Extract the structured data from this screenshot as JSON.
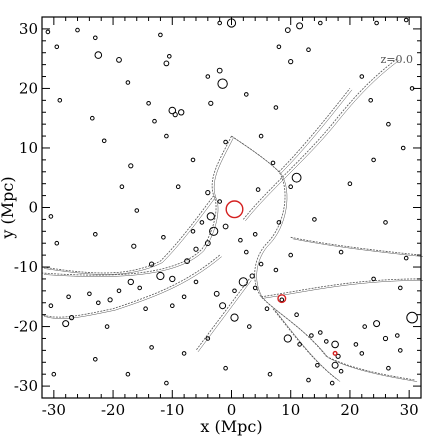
{
  "chart_data": {
    "type": "scatter",
    "title": "",
    "xlabel": "x (Mpc)",
    "ylabel": "y (Mpc)",
    "xlim": [
      -32,
      32
    ],
    "ylim": [
      -32,
      32
    ],
    "xticks": [
      -30,
      -20,
      -10,
      0,
      10,
      20,
      30
    ],
    "yticks": [
      -30,
      -20,
      -10,
      0,
      10,
      20,
      30
    ],
    "annotation": "z=0.0",
    "grid": false,
    "colors": {
      "halo": "#000000",
      "highlight": "#d42020",
      "filament": "#555555"
    },
    "series": [
      {
        "name": "",
        "color": "#000000",
        "points": [
          [
            -31.0,
            29.5,
            0.3
          ],
          [
            -29.5,
            27.0,
            0.3
          ],
          [
            -26.0,
            29.8,
            0.3
          ],
          [
            -22.5,
            25.6,
            0.55
          ],
          [
            -19.0,
            24.8,
            0.4
          ],
          [
            -12.0,
            29.0,
            0.3
          ],
          [
            -11.0,
            24.2,
            0.4
          ],
          [
            -10.5,
            25.4,
            0.3
          ],
          [
            -2.0,
            31.0,
            0.3
          ],
          [
            0.0,
            31.0,
            0.7
          ],
          [
            9.5,
            29.8,
            0.4
          ],
          [
            11.5,
            30.5,
            0.5
          ],
          [
            15.0,
            31.0,
            0.3
          ],
          [
            24.5,
            31.0,
            0.3
          ],
          [
            29.5,
            31.5,
            0.3
          ],
          [
            -29.0,
            18.0,
            0.3
          ],
          [
            -23.5,
            15.0,
            0.3
          ],
          [
            -14.0,
            17.5,
            0.3
          ],
          [
            -13.0,
            14.5,
            0.3
          ],
          [
            -3.5,
            17.5,
            0.35
          ],
          [
            -4.0,
            22.0,
            0.3
          ],
          [
            -2.0,
            23.0,
            0.4
          ],
          [
            -1.5,
            20.8,
            0.8
          ],
          [
            -17.5,
            21.0,
            0.3
          ],
          [
            -10.0,
            16.3,
            0.55
          ],
          [
            -8.5,
            16.0,
            0.45
          ],
          [
            -9.5,
            15.6,
            0.35
          ],
          [
            -21.5,
            11.2,
            0.3
          ],
          [
            -11.0,
            12.0,
            0.3
          ],
          [
            -1.0,
            11.0,
            0.3
          ],
          [
            7.5,
            16.8,
            0.3
          ],
          [
            10.0,
            24.5,
            0.35
          ],
          [
            13.0,
            26.5,
            0.3
          ],
          [
            8.0,
            27.0,
            0.3
          ],
          [
            22.0,
            22.0,
            0.3
          ],
          [
            23.5,
            18.0,
            0.3
          ],
          [
            26.5,
            14.0,
            0.3
          ],
          [
            29.0,
            10.0,
            0.3
          ],
          [
            10.0,
            3.5,
            0.3
          ],
          [
            7.0,
            7.5,
            0.3
          ],
          [
            -17.0,
            7.0,
            0.35
          ],
          [
            -18.5,
            3.5,
            0.3
          ],
          [
            -9.0,
            3.5,
            0.3
          ],
          [
            -6.5,
            8.0,
            0.3
          ],
          [
            14.0,
            -2.0,
            0.3
          ],
          [
            26.0,
            -2.5,
            0.3
          ],
          [
            18.5,
            -7.5,
            0.3
          ],
          [
            24.0,
            -12.0,
            0.3
          ],
          [
            29.5,
            -8.5,
            0.3
          ],
          [
            28.5,
            -13.5,
            0.3
          ],
          [
            -30.5,
            -1.5,
            0.3
          ],
          [
            -23.0,
            -4.5,
            0.3
          ],
          [
            -29.5,
            -6.0,
            0.3
          ],
          [
            -16.5,
            -6.5,
            0.35
          ],
          [
            -11.5,
            -5.0,
            0.3
          ],
          [
            -3.5,
            -1.5,
            0.6
          ],
          [
            -3.0,
            -4.0,
            0.7
          ],
          [
            -1.0,
            -3.2,
            0.4
          ],
          [
            -4.0,
            -6.0,
            0.4
          ],
          [
            -6.0,
            -7.0,
            0.35
          ],
          [
            1.5,
            -5.5,
            0.3
          ],
          [
            4.0,
            -4.5,
            0.3
          ],
          [
            2.5,
            -7.5,
            0.3
          ],
          [
            -2.0,
            1.0,
            0.3
          ],
          [
            -4.0,
            2.5,
            0.35
          ],
          [
            3.5,
            -11.5,
            0.35
          ],
          [
            5.0,
            -9.5,
            0.3
          ],
          [
            2.0,
            -12.5,
            0.7
          ],
          [
            4.0,
            -13.5,
            0.3
          ],
          [
            -2.5,
            -14.5,
            0.4
          ],
          [
            -1.5,
            -16.5,
            0.5
          ],
          [
            0.5,
            -18.5,
            0.6
          ],
          [
            3.0,
            -20.0,
            0.3
          ],
          [
            -13.5,
            -9.5,
            0.35
          ],
          [
            -12.0,
            -11.5,
            0.6
          ],
          [
            -10.0,
            -12.0,
            0.45
          ],
          [
            -7.5,
            -9.0,
            0.4
          ],
          [
            -15.5,
            -13.5,
            0.3
          ],
          [
            -17.0,
            -12.5,
            0.45
          ],
          [
            -19.0,
            -14.0,
            0.3
          ],
          [
            -20.5,
            -15.5,
            0.35
          ],
          [
            -22.5,
            -16.0,
            0.3
          ],
          [
            -24.0,
            -14.5,
            0.3
          ],
          [
            -27.5,
            -15.0,
            0.3
          ],
          [
            -30.5,
            -16.5,
            0.3
          ],
          [
            -28.0,
            -19.5,
            0.5
          ],
          [
            -27.0,
            -18.5,
            0.35
          ],
          [
            -21.0,
            -20.0,
            0.3
          ],
          [
            -14.5,
            -17.0,
            0.3
          ],
          [
            -10.0,
            -16.5,
            0.3
          ],
          [
            -8.0,
            -15.0,
            0.3
          ],
          [
            -23.0,
            -25.5,
            0.3
          ],
          [
            -30.0,
            -28.0,
            0.3
          ],
          [
            -17.5,
            -28.0,
            0.3
          ],
          [
            -13.5,
            -23.5,
            0.3
          ],
          [
            -4.0,
            -22.0,
            0.3
          ],
          [
            -1.0,
            -27.0,
            0.3
          ],
          [
            -11.0,
            -29.5,
            0.3
          ],
          [
            6.0,
            -17.0,
            0.3
          ],
          [
            8.5,
            -15.5,
            0.3
          ],
          [
            11.0,
            -18.0,
            0.3
          ],
          [
            9.5,
            -22.0,
            0.6
          ],
          [
            11.5,
            -23.0,
            0.3
          ],
          [
            13.5,
            -21.5,
            0.3
          ],
          [
            15.0,
            -21.0,
            0.3
          ],
          [
            16.0,
            -22.5,
            0.3
          ],
          [
            17.5,
            -23.0,
            0.55
          ],
          [
            18.0,
            -25.0,
            0.35
          ],
          [
            17.5,
            -26.5,
            0.5
          ],
          [
            18.5,
            -27.5,
            0.3
          ],
          [
            14.5,
            -26.5,
            0.3
          ],
          [
            13.0,
            -29.0,
            0.3
          ],
          [
            17.0,
            -29.5,
            0.3
          ],
          [
            21.0,
            -23.0,
            0.3
          ],
          [
            22.0,
            -24.5,
            0.3
          ],
          [
            22.5,
            -20.0,
            0.3
          ],
          [
            24.5,
            -19.5,
            0.5
          ],
          [
            26.0,
            -22.0,
            0.35
          ],
          [
            28.0,
            -21.5,
            0.3
          ],
          [
            30.5,
            -18.5,
            0.9
          ],
          [
            26.5,
            -27.0,
            0.3
          ],
          [
            28.5,
            -24.0,
            0.3
          ],
          [
            4.5,
            3.0,
            0.3
          ],
          [
            8.0,
            -2.5,
            0.3
          ],
          [
            10.0,
            -8.0,
            0.3
          ],
          [
            7.5,
            -10.5,
            0.3
          ],
          [
            0.5,
            -14.0,
            0.3
          ],
          [
            -6.0,
            -12.5,
            0.3
          ],
          [
            -6.5,
            -4.0,
            0.3
          ],
          [
            -5.0,
            -2.5,
            0.3
          ],
          [
            11.0,
            5.0,
            0.75
          ],
          [
            5.0,
            12.0,
            0.3
          ],
          [
            -23.0,
            28.5,
            0.3
          ],
          [
            30.5,
            20.0,
            0.3
          ],
          [
            2.5,
            19.0,
            0.3
          ],
          [
            20.0,
            4.0,
            0.3
          ],
          [
            24.0,
            8.0,
            0.3
          ],
          [
            -8.0,
            -24.5,
            0.3
          ],
          [
            6.5,
            -28.0,
            0.3
          ],
          [
            -16.0,
            -0.5,
            0.3
          ]
        ]
      },
      {
        "name": "",
        "color": "#d42020",
        "points": [
          [
            0.5,
            -0.3,
            1.4
          ],
          [
            8.5,
            -15.3,
            0.65
          ],
          [
            17.5,
            -24.5,
            0.3
          ]
        ]
      }
    ]
  }
}
